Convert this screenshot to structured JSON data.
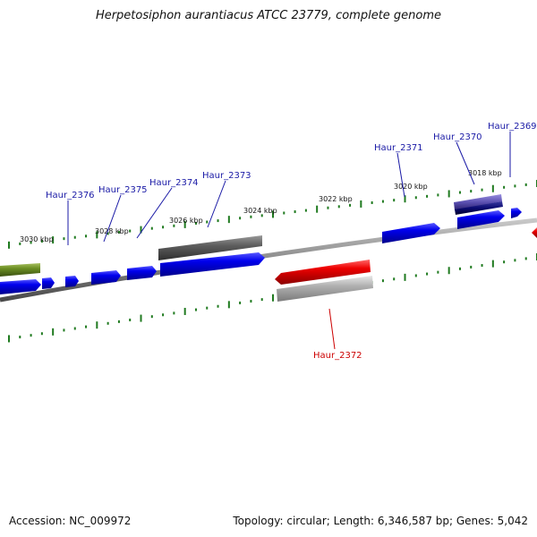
{
  "title": "Herpetosiphon aurantiacus ATCC 23779, complete genome",
  "accession": "Accession: NC_009972",
  "topology": "Topology: circular; Length: 6,346,587 bp; Genes: 5,042",
  "kbp_labels": [
    "3030 kbp",
    "3028 kbp",
    "3026 kbp",
    "3024 kbp",
    "3022 kbp",
    "3020 kbp",
    "3018 kbp"
  ],
  "gene_labels": {
    "haur_2376": "Haur_2376",
    "haur_2375": "Haur_2375",
    "haur_2374": "Haur_2374",
    "haur_2373": "Haur_2373",
    "haur_2371": "Haur_2371",
    "haur_2370": "Haur_2370",
    "haur_2369": "Haur_2369",
    "haur_2372": "Haur_2372"
  },
  "colors": {
    "label_blue": "#1a1aa6",
    "label_red": "#cc0000",
    "gene_blue": "#0000ee",
    "gene_red": "#ee0000",
    "gene_grey": "#666666",
    "gene_light_grey": "#b0b0b0",
    "gene_olive": "#6b8e23",
    "gene_purple": "#5a4fb0",
    "gene_navy": "#0a0a70",
    "tick_green": "#1f7a1f",
    "backbone": "#888888"
  }
}
